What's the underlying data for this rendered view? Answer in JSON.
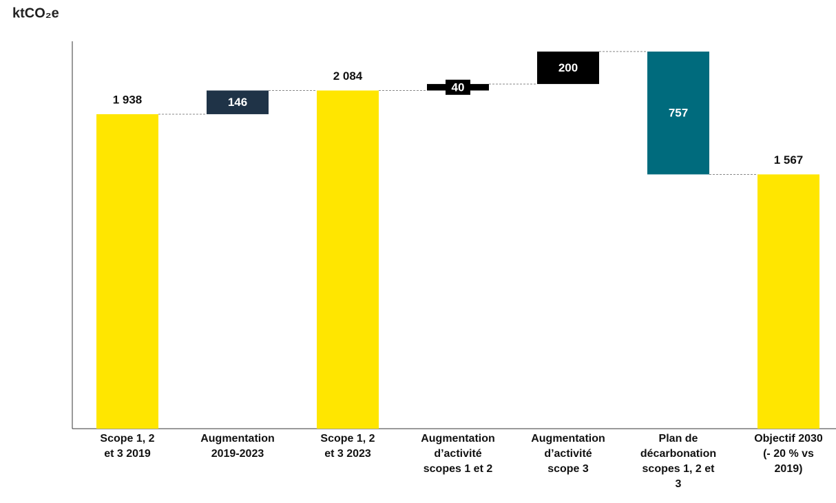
{
  "chart_data": {
    "type": "waterfall",
    "title": "ktCO₂e",
    "categories": [
      "Scope 1, 2\net 3 2019",
      "Augmentation\n2019-2023",
      "Scope 1, 2\net 3 2023",
      "Augmentation\nd’activité\nscopes 1 et 2",
      "Augmentation\nd’activité\nscope 3",
      "Plan de\ndécarbonation\nscopes 1, 2 et\n3",
      "Objectif 2030\n(- 20 % vs\n2019)"
    ],
    "values": [
      1938,
      146,
      2084,
      40,
      200,
      757,
      1567
    ],
    "value_labels": [
      "1 938",
      "146",
      "2 084",
      "40",
      "200",
      "757",
      "1 567"
    ],
    "measures": [
      "total",
      "increase",
      "total",
      "increase",
      "increase",
      "decrease",
      "total"
    ],
    "colors": [
      "#FFE600",
      "#1F3347",
      "#FFE600",
      "#000000",
      "#000000",
      "#006B7D",
      "#FFE600"
    ],
    "ylim": [
      0,
      2400
    ],
    "connectors": true
  }
}
